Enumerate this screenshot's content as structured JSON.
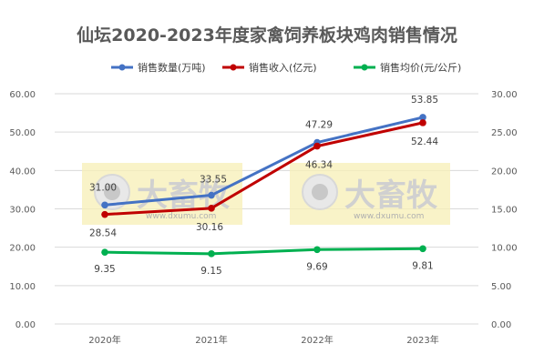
{
  "chart_data": {
    "type": "line",
    "title": "仙坛2020-2023年度家禽饲养板块鸡肉销售情况",
    "categories": [
      "2020年",
      "2021年",
      "2022年",
      "2023年"
    ],
    "y_left": {
      "range": [
        0,
        60
      ],
      "ticks": [
        "0.00",
        "10.00",
        "20.00",
        "30.00",
        "40.00",
        "50.00",
        "60.00"
      ]
    },
    "y_right": {
      "range": [
        0,
        30
      ],
      "ticks": [
        "0.00",
        "5.00",
        "10.00",
        "15.00",
        "20.00",
        "25.00",
        "30.00"
      ]
    },
    "grid": true,
    "legend_position": "top",
    "series": [
      {
        "name": "销售数量(万吨)",
        "axis": "left",
        "color": "#4472c4",
        "values": [
          31.0,
          33.55,
          47.29,
          53.85
        ],
        "labels": [
          "31.00",
          "33.55",
          "47.29",
          "53.85"
        ]
      },
      {
        "name": "销售收入(亿元)",
        "axis": "left",
        "color": "#c00000",
        "values": [
          28.54,
          30.16,
          46.34,
          52.44
        ],
        "labels": [
          "28.54",
          "30.16",
          "46.34",
          "52.44"
        ]
      },
      {
        "name": "销售均价(元/公斤)",
        "axis": "right",
        "color": "#00b050",
        "values": [
          9.35,
          9.15,
          9.69,
          9.81
        ],
        "labels": [
          "9.35",
          "9.15",
          "9.69",
          "9.81"
        ]
      }
    ]
  },
  "watermark": {
    "brand": "大畜牧",
    "url": "www.dxumu.com"
  }
}
